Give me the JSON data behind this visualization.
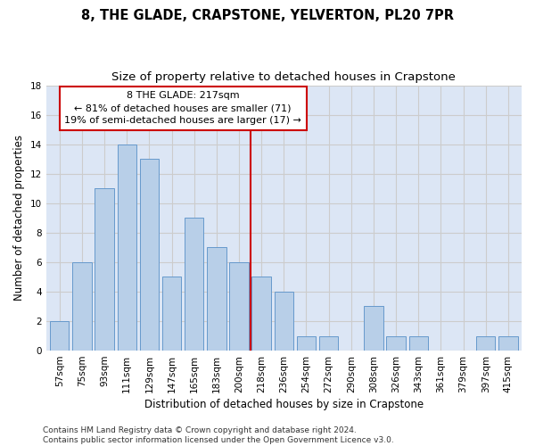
{
  "title": "8, THE GLADE, CRAPSTONE, YELVERTON, PL20 7PR",
  "subtitle": "Size of property relative to detached houses in Crapstone",
  "xlabel": "Distribution of detached houses by size in Crapstone",
  "ylabel": "Number of detached properties",
  "categories": [
    "57sqm",
    "75sqm",
    "93sqm",
    "111sqm",
    "129sqm",
    "147sqm",
    "165sqm",
    "183sqm",
    "200sqm",
    "218sqm",
    "236sqm",
    "254sqm",
    "272sqm",
    "290sqm",
    "308sqm",
    "326sqm",
    "343sqm",
    "361sqm",
    "379sqm",
    "397sqm",
    "415sqm"
  ],
  "values": [
    2,
    6,
    11,
    14,
    13,
    5,
    9,
    7,
    6,
    5,
    4,
    1,
    1,
    0,
    3,
    1,
    1,
    0,
    0,
    1,
    1
  ],
  "bar_color": "#b8cfe8",
  "bar_edgecolor": "#6699cc",
  "redline_index": 9,
  "annotation_line1": "8 THE GLADE: 217sqm",
  "annotation_line2": "← 81% of detached houses are smaller (71)",
  "annotation_line3": "19% of semi-detached houses are larger (17) →",
  "annotation_box_color": "#ffffff",
  "annotation_box_edgecolor": "#cc0000",
  "ylim": [
    0,
    18
  ],
  "yticks": [
    0,
    2,
    4,
    6,
    8,
    10,
    12,
    14,
    16,
    18
  ],
  "grid_color": "#cccccc",
  "bg_color": "#dce6f5",
  "footer": "Contains HM Land Registry data © Crown copyright and database right 2024.\nContains public sector information licensed under the Open Government Licence v3.0.",
  "title_fontsize": 10.5,
  "subtitle_fontsize": 9.5,
  "xlabel_fontsize": 8.5,
  "ylabel_fontsize": 8.5,
  "tick_fontsize": 7.5,
  "footer_fontsize": 6.5,
  "annotation_fontsize": 8.0
}
